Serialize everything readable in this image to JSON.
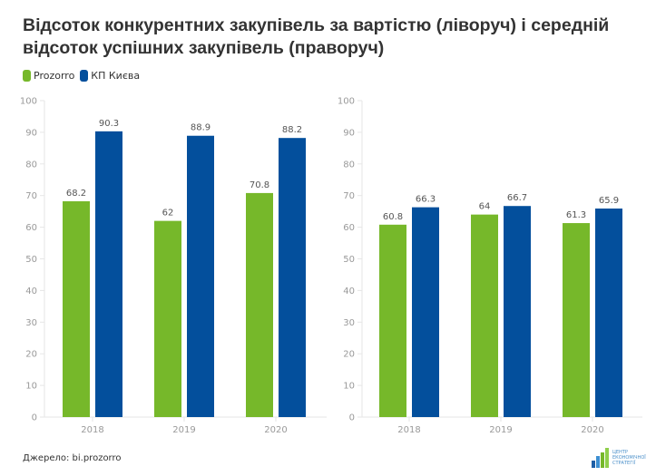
{
  "title": "Відсоток конкурентних закупівель за вартістю (ліворуч) і середній відсоток успішних закупівель (праворуч)",
  "legend": [
    {
      "label": "Prozorro",
      "color": "#76b82a"
    },
    {
      "label": "КП Києва",
      "color": "#034f9c"
    }
  ],
  "source": "Джерело: bi.prozorro",
  "logo": {
    "icon": "bar-chart-logo-icon",
    "lines": [
      "ЦЕНТР",
      "ЕКОНОМІЧНОЇ",
      "СТРАТЕГІЇ"
    ]
  },
  "chart_data": [
    {
      "type": "bar",
      "title": "Відсоток конкурентних закупівель за вартістю",
      "position": "left",
      "categories": [
        "2018",
        "2019",
        "2020"
      ],
      "series": [
        {
          "name": "Prozorro",
          "color": "#76b82a",
          "values": [
            68.2,
            62,
            70.8
          ],
          "labels": [
            "68.2",
            "62",
            "70.8"
          ]
        },
        {
          "name": "КП Києва",
          "color": "#034f9c",
          "values": [
            90.3,
            88.9,
            88.2
          ],
          "labels": [
            "90.3",
            "88.9",
            "88.2"
          ]
        }
      ],
      "ylim": [
        0,
        100
      ],
      "yticks": [
        0,
        10,
        20,
        30,
        40,
        50,
        60,
        70,
        80,
        90,
        100
      ],
      "xlabel": "",
      "ylabel": "",
      "grid": false,
      "legend": "top-left"
    },
    {
      "type": "bar",
      "title": "Середній відсоток успішних закупівель",
      "position": "right",
      "categories": [
        "2018",
        "2019",
        "2020"
      ],
      "series": [
        {
          "name": "Prozorro",
          "color": "#76b82a",
          "values": [
            60.8,
            64,
            61.3
          ],
          "labels": [
            "60.8",
            "64",
            "61.3"
          ]
        },
        {
          "name": "КП Києва",
          "color": "#034f9c",
          "values": [
            66.3,
            66.7,
            65.9
          ],
          "labels": [
            "66.3",
            "66.7",
            "65.9"
          ]
        }
      ],
      "ylim": [
        0,
        100
      ],
      "yticks": [
        0,
        10,
        20,
        30,
        40,
        50,
        60,
        70,
        80,
        90,
        100
      ],
      "xlabel": "",
      "ylabel": "",
      "grid": false,
      "legend": "top-left"
    }
  ]
}
